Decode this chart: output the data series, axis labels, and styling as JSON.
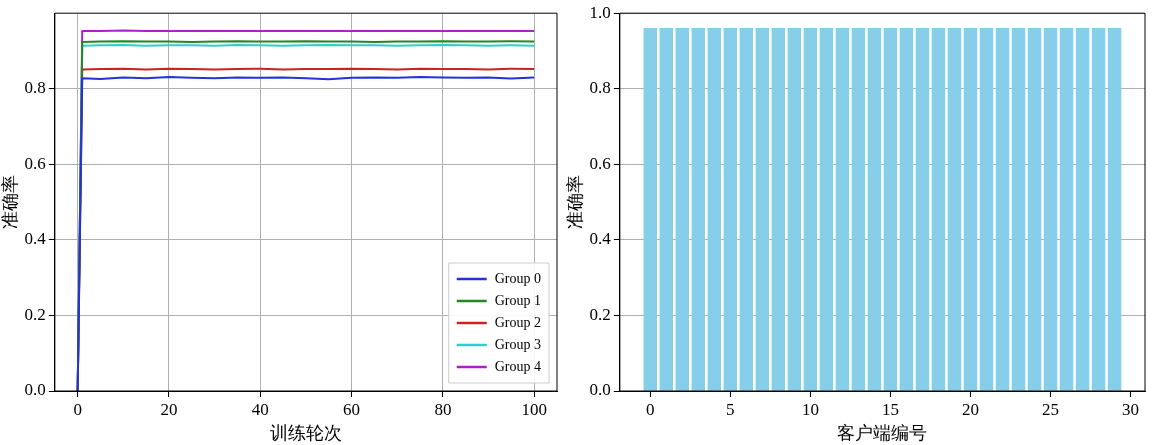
{
  "chart_data": [
    {
      "type": "line",
      "xlabel": "训练轮次",
      "ylabel": "准确率",
      "xlim": [
        -5,
        105
      ],
      "xticks": [
        0,
        20,
        40,
        60,
        80,
        100
      ],
      "ylim": [
        0,
        1.0
      ],
      "yticks": [
        {
          "value": 0,
          "label": "0.0"
        },
        {
          "value": 0.2,
          "label": "0.2"
        },
        {
          "value": 0.4,
          "label": "0.4"
        },
        {
          "value": 0.6,
          "label": "0.6"
        },
        {
          "value": 0.8,
          "label": "0.8"
        }
      ],
      "grid": true,
      "legend": "bottom right",
      "x": [
        0,
        1,
        5,
        10,
        15,
        20,
        25,
        30,
        35,
        40,
        45,
        50,
        55,
        60,
        65,
        70,
        75,
        80,
        85,
        90,
        95,
        100
      ],
      "series": [
        {
          "name": "Group 0",
          "color": "#2233dd",
          "values": [
            0,
            0.828,
            0.826,
            0.83,
            0.828,
            0.831,
            0.829,
            0.828,
            0.83,
            0.829,
            0.83,
            0.828,
            0.825,
            0.829,
            0.83,
            0.829,
            0.831,
            0.83,
            0.829,
            0.83,
            0.827,
            0.83
          ]
        },
        {
          "name": "Group 1",
          "color": "#228822",
          "values": [
            0,
            0.924,
            0.925,
            0.926,
            0.925,
            0.925,
            0.924,
            0.925,
            0.926,
            0.925,
            0.925,
            0.926,
            0.925,
            0.925,
            0.924,
            0.925,
            0.925,
            0.926,
            0.925,
            0.925,
            0.926,
            0.925
          ]
        },
        {
          "name": "Group 2",
          "color": "#cc2222",
          "values": [
            0,
            0.851,
            0.852,
            0.853,
            0.851,
            0.853,
            0.852,
            0.851,
            0.852,
            0.853,
            0.851,
            0.852,
            0.852,
            0.853,
            0.852,
            0.851,
            0.853,
            0.852,
            0.852,
            0.851,
            0.853,
            0.852
          ]
        },
        {
          "name": "Group 3",
          "color": "#33cccc",
          "values": [
            0,
            0.914,
            0.915,
            0.916,
            0.914,
            0.915,
            0.915,
            0.914,
            0.916,
            0.915,
            0.914,
            0.915,
            0.916,
            0.915,
            0.915,
            0.914,
            0.915,
            0.916,
            0.915,
            0.914,
            0.915,
            0.914
          ]
        },
        {
          "name": "Group 4",
          "color": "#aa22cc",
          "values": [
            0,
            0.953,
            0.953,
            0.954,
            0.953,
            0.953,
            0.953,
            0.953,
            0.953,
            0.953,
            0.953,
            0.953,
            0.953,
            0.953,
            0.953,
            0.953,
            0.953,
            0.953,
            0.953,
            0.953,
            0.953,
            0.953
          ]
        }
      ]
    },
    {
      "type": "bar",
      "xlabel": "客户端编号",
      "ylabel": "准确率",
      "xlim": [
        -1.9,
        30.9
      ],
      "xticks": [
        0,
        5,
        10,
        15,
        20,
        25,
        30
      ],
      "ylim": [
        0,
        1.0
      ],
      "yticks": [
        {
          "value": 0,
          "label": "0.0"
        },
        {
          "value": 0.2,
          "label": "0.2"
        },
        {
          "value": 0.4,
          "label": "0.4"
        },
        {
          "value": 0.6,
          "label": "0.6"
        },
        {
          "value": 0.8,
          "label": "0.8"
        },
        {
          "value": 1.0,
          "label": "1.0"
        }
      ],
      "grid": "y",
      "color": "#87ceeb",
      "x": [
        0,
        1,
        2,
        3,
        4,
        5,
        6,
        7,
        8,
        9,
        10,
        11,
        12,
        13,
        14,
        15,
        16,
        17,
        18,
        19,
        20,
        21,
        22,
        23,
        24,
        25,
        26,
        27,
        28,
        29
      ],
      "values": [
        0.96,
        0.96,
        0.96,
        0.96,
        0.96,
        0.96,
        0.96,
        0.96,
        0.96,
        0.96,
        0.96,
        0.96,
        0.96,
        0.96,
        0.96,
        0.96,
        0.96,
        0.96,
        0.96,
        0.96,
        0.96,
        0.96,
        0.96,
        0.96,
        0.96,
        0.96,
        0.96,
        0.96,
        0.96,
        0.96
      ]
    }
  ]
}
